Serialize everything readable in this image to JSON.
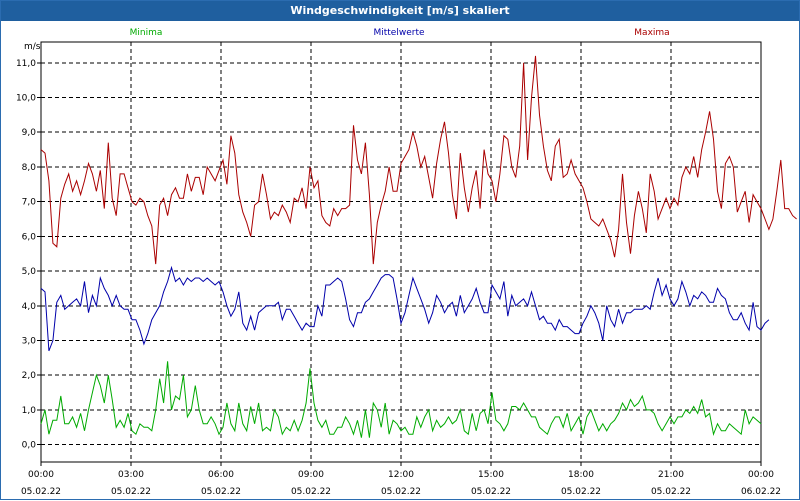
{
  "window": {
    "title": "Windgeschwindigkeit [m/s] skaliert"
  },
  "chart_data": {
    "type": "line",
    "title": "Windgeschwindigkeit [m/s] skaliert",
    "ylabel": "m/s",
    "xlabel": "",
    "ylim": [
      -0.5,
      11.6
    ],
    "xlim": [
      0,
      24
    ],
    "grid": true,
    "legend_position": "top",
    "y_ticks": [
      "0,0",
      "1,0",
      "2,0",
      "3,0",
      "4,0",
      "5,0",
      "6,0",
      "7,0",
      "8,0",
      "9,0",
      "10,0",
      "11,0"
    ],
    "x_ticks": [
      {
        "time": "00:00",
        "date": "05.02.22"
      },
      {
        "time": "03:00",
        "date": "05.02.22"
      },
      {
        "time": "06:00",
        "date": "05.02.22"
      },
      {
        "time": "09:00",
        "date": "05.02.22"
      },
      {
        "time": "12:00",
        "date": "05.02.22"
      },
      {
        "time": "15:00",
        "date": "05.02.22"
      },
      {
        "time": "18:00",
        "date": "05.02.22"
      },
      {
        "time": "21:00",
        "date": "05.02.22"
      },
      {
        "time": "00:00",
        "date": "06.02.22"
      }
    ],
    "x_unit": "hours since 05.02.22 00:00, sampled every 10 minutes",
    "series": [
      {
        "name": "Minima",
        "color": "#00aa00",
        "values": [
          0.6,
          1.0,
          0.3,
          0.7,
          0.7,
          1.4,
          0.6,
          0.6,
          0.8,
          0.5,
          0.9,
          0.4,
          1.0,
          1.5,
          2.0,
          1.7,
          1.2,
          2.0,
          1.3,
          0.5,
          0.7,
          0.5,
          0.9,
          0.4,
          0.3,
          0.6,
          0.5,
          0.5,
          0.4,
          1.0,
          1.9,
          1.2,
          2.4,
          1.0,
          1.4,
          1.3,
          2.0,
          0.8,
          1.0,
          1.7,
          1.0,
          0.6,
          0.6,
          0.8,
          0.6,
          0.3,
          0.5,
          1.2,
          0.6,
          0.4,
          1.2,
          0.6,
          0.4,
          1.1,
          0.6,
          1.2,
          0.4,
          0.5,
          0.4,
          1.0,
          0.8,
          0.3,
          0.5,
          0.4,
          0.7,
          0.4,
          0.7,
          1.2,
          2.2,
          1.2,
          0.7,
          0.5,
          0.7,
          0.3,
          0.3,
          0.5,
          0.5,
          0.8,
          0.6,
          0.3,
          0.7,
          0.2,
          1.0,
          0.2,
          1.2,
          1.0,
          0.5,
          1.2,
          0.3,
          0.7,
          0.6,
          0.4,
          0.5,
          0.3,
          0.3,
          0.8,
          0.5,
          0.8,
          1.0,
          0.4,
          0.7,
          0.5,
          0.6,
          0.8,
          0.6,
          0.7,
          1.0,
          0.4,
          0.3,
          0.9,
          0.4,
          0.9,
          1.0,
          0.6,
          1.5,
          0.7,
          0.6,
          0.4,
          0.6,
          1.1,
          1.1,
          1.0,
          1.2,
          1.0,
          0.8,
          0.8,
          0.5,
          0.4,
          0.3,
          0.6,
          0.8,
          0.8,
          0.5,
          0.9,
          0.4,
          0.6,
          0.8,
          0.3,
          0.8,
          1.0,
          0.7,
          0.4,
          0.6,
          0.4,
          0.6,
          0.7,
          0.9,
          1.2,
          1.0,
          1.3,
          1.1,
          1.2,
          1.4,
          1.0,
          1.0,
          0.9,
          0.6,
          0.4,
          0.6,
          0.8,
          0.6,
          0.8,
          0.8,
          1.0,
          0.9,
          1.1,
          0.9,
          1.3,
          0.8,
          0.9,
          0.3,
          0.6,
          0.4,
          0.4,
          0.6,
          0.5,
          0.4,
          0.3,
          1.0,
          0.6,
          0.8,
          0.7,
          0.6
        ]
      },
      {
        "name": "Mittelwerte",
        "color": "#0000aa",
        "values": [
          4.5,
          4.4,
          2.7,
          3.0,
          4.1,
          4.3,
          3.9,
          4.0,
          4.1,
          4.2,
          4.0,
          4.7,
          3.8,
          4.3,
          4.0,
          4.8,
          4.5,
          4.3,
          4.0,
          4.3,
          4.0,
          3.9,
          3.9,
          3.6,
          3.6,
          3.3,
          2.9,
          3.2,
          3.6,
          3.8,
          4.0,
          4.4,
          4.7,
          5.1,
          4.7,
          4.8,
          4.6,
          4.8,
          4.7,
          4.8,
          4.8,
          4.7,
          4.8,
          4.7,
          4.6,
          4.7,
          4.4,
          4.0,
          3.7,
          3.9,
          4.4,
          3.5,
          3.3,
          3.7,
          3.3,
          3.8,
          3.9,
          4.0,
          4.0,
          4.0,
          4.1,
          3.6,
          3.9,
          3.9,
          3.7,
          3.5,
          3.3,
          3.5,
          3.4,
          3.4,
          4.0,
          3.7,
          4.6,
          4.6,
          4.7,
          4.8,
          4.7,
          4.2,
          3.6,
          3.4,
          3.8,
          3.8,
          4.1,
          4.2,
          4.4,
          4.6,
          4.8,
          4.9,
          4.9,
          4.8,
          4.2,
          3.5,
          3.8,
          4.3,
          4.8,
          4.5,
          4.2,
          3.9,
          3.5,
          3.8,
          4.3,
          4.1,
          3.8,
          4.0,
          4.1,
          3.7,
          4.3,
          3.8,
          4.0,
          4.2,
          4.5,
          4.1,
          3.8,
          3.8,
          4.6,
          4.4,
          4.2,
          4.7,
          3.7,
          4.3,
          4.0,
          4.1,
          4.2,
          4.0,
          4.4,
          4.0,
          3.6,
          3.7,
          3.5,
          3.5,
          3.3,
          3.6,
          3.4,
          3.4,
          3.3,
          3.2,
          3.2,
          3.5,
          3.7,
          4.0,
          3.8,
          3.5,
          3.0,
          4.0,
          3.6,
          3.4,
          3.9,
          3.5,
          3.8,
          3.8,
          3.9,
          3.9,
          3.9,
          4.0,
          3.9,
          4.4,
          4.8,
          4.3,
          4.6,
          4.2,
          4.0,
          4.2,
          4.7,
          4.4,
          4.0,
          4.3,
          4.2,
          4.4,
          4.3,
          4.1,
          4.1,
          4.5,
          4.3,
          4.2,
          3.8,
          3.6,
          3.6,
          3.8,
          3.5,
          3.3,
          4.1,
          3.4,
          3.3,
          3.5,
          3.6
        ]
      },
      {
        "name": "Maxima",
        "color": "#aa0000",
        "values": [
          8.5,
          8.4,
          7.6,
          5.8,
          5.7,
          7.1,
          7.5,
          7.8,
          7.3,
          7.6,
          7.2,
          7.6,
          8.1,
          7.8,
          7.3,
          7.9,
          6.8,
          8.7,
          7.1,
          6.6,
          7.8,
          7.8,
          7.4,
          7.0,
          6.9,
          7.1,
          7.0,
          6.6,
          6.3,
          5.2,
          6.9,
          7.1,
          6.6,
          7.2,
          7.4,
          7.1,
          7.1,
          7.8,
          7.3,
          7.7,
          7.7,
          7.2,
          8.0,
          7.8,
          7.6,
          7.9,
          8.2,
          7.5,
          8.9,
          8.4,
          7.2,
          6.7,
          6.4,
          6.0,
          6.9,
          7.0,
          7.8,
          7.2,
          6.5,
          6.7,
          6.6,
          6.9,
          6.7,
          6.4,
          7.1,
          7.0,
          7.4,
          6.8,
          8.0,
          7.4,
          7.6,
          6.6,
          6.4,
          6.3,
          6.8,
          6.6,
          6.8,
          6.8,
          6.9,
          9.2,
          8.2,
          7.8,
          8.7,
          7.2,
          5.2,
          6.4,
          6.9,
          7.3,
          8.0,
          7.3,
          7.3,
          8.1,
          8.3,
          8.5,
          9.0,
          8.6,
          8.0,
          8.3,
          7.7,
          7.1,
          8.1,
          8.8,
          9.3,
          8.4,
          7.2,
          6.5,
          8.4,
          7.4,
          6.7,
          7.4,
          7.9,
          6.8,
          8.5,
          7.8,
          7.6,
          7.0,
          7.8,
          8.9,
          8.8,
          8.0,
          7.7,
          8.6,
          11.0,
          8.2,
          10.0,
          11.2,
          9.5,
          8.6,
          7.9,
          7.6,
          8.6,
          8.8,
          7.7,
          7.8,
          8.2,
          7.8,
          7.6,
          7.4,
          7.0,
          6.5,
          6.4,
          6.3,
          6.5,
          6.2,
          5.9,
          5.4,
          6.2,
          7.8,
          6.4,
          5.5,
          6.6,
          7.3,
          6.8,
          6.1,
          7.8,
          7.3,
          6.5,
          6.8,
          7.1,
          6.8,
          7.1,
          6.9,
          7.7,
          8.0,
          7.8,
          8.3,
          7.7,
          8.5,
          9.0,
          9.6,
          8.8,
          7.3,
          6.8,
          8.1,
          8.3,
          8.0,
          6.7,
          7.0,
          7.3,
          6.4,
          7.2,
          7.0,
          6.8,
          6.5,
          6.2,
          6.5,
          7.3,
          8.2,
          6.8,
          6.8,
          6.6,
          6.5
        ]
      }
    ]
  }
}
